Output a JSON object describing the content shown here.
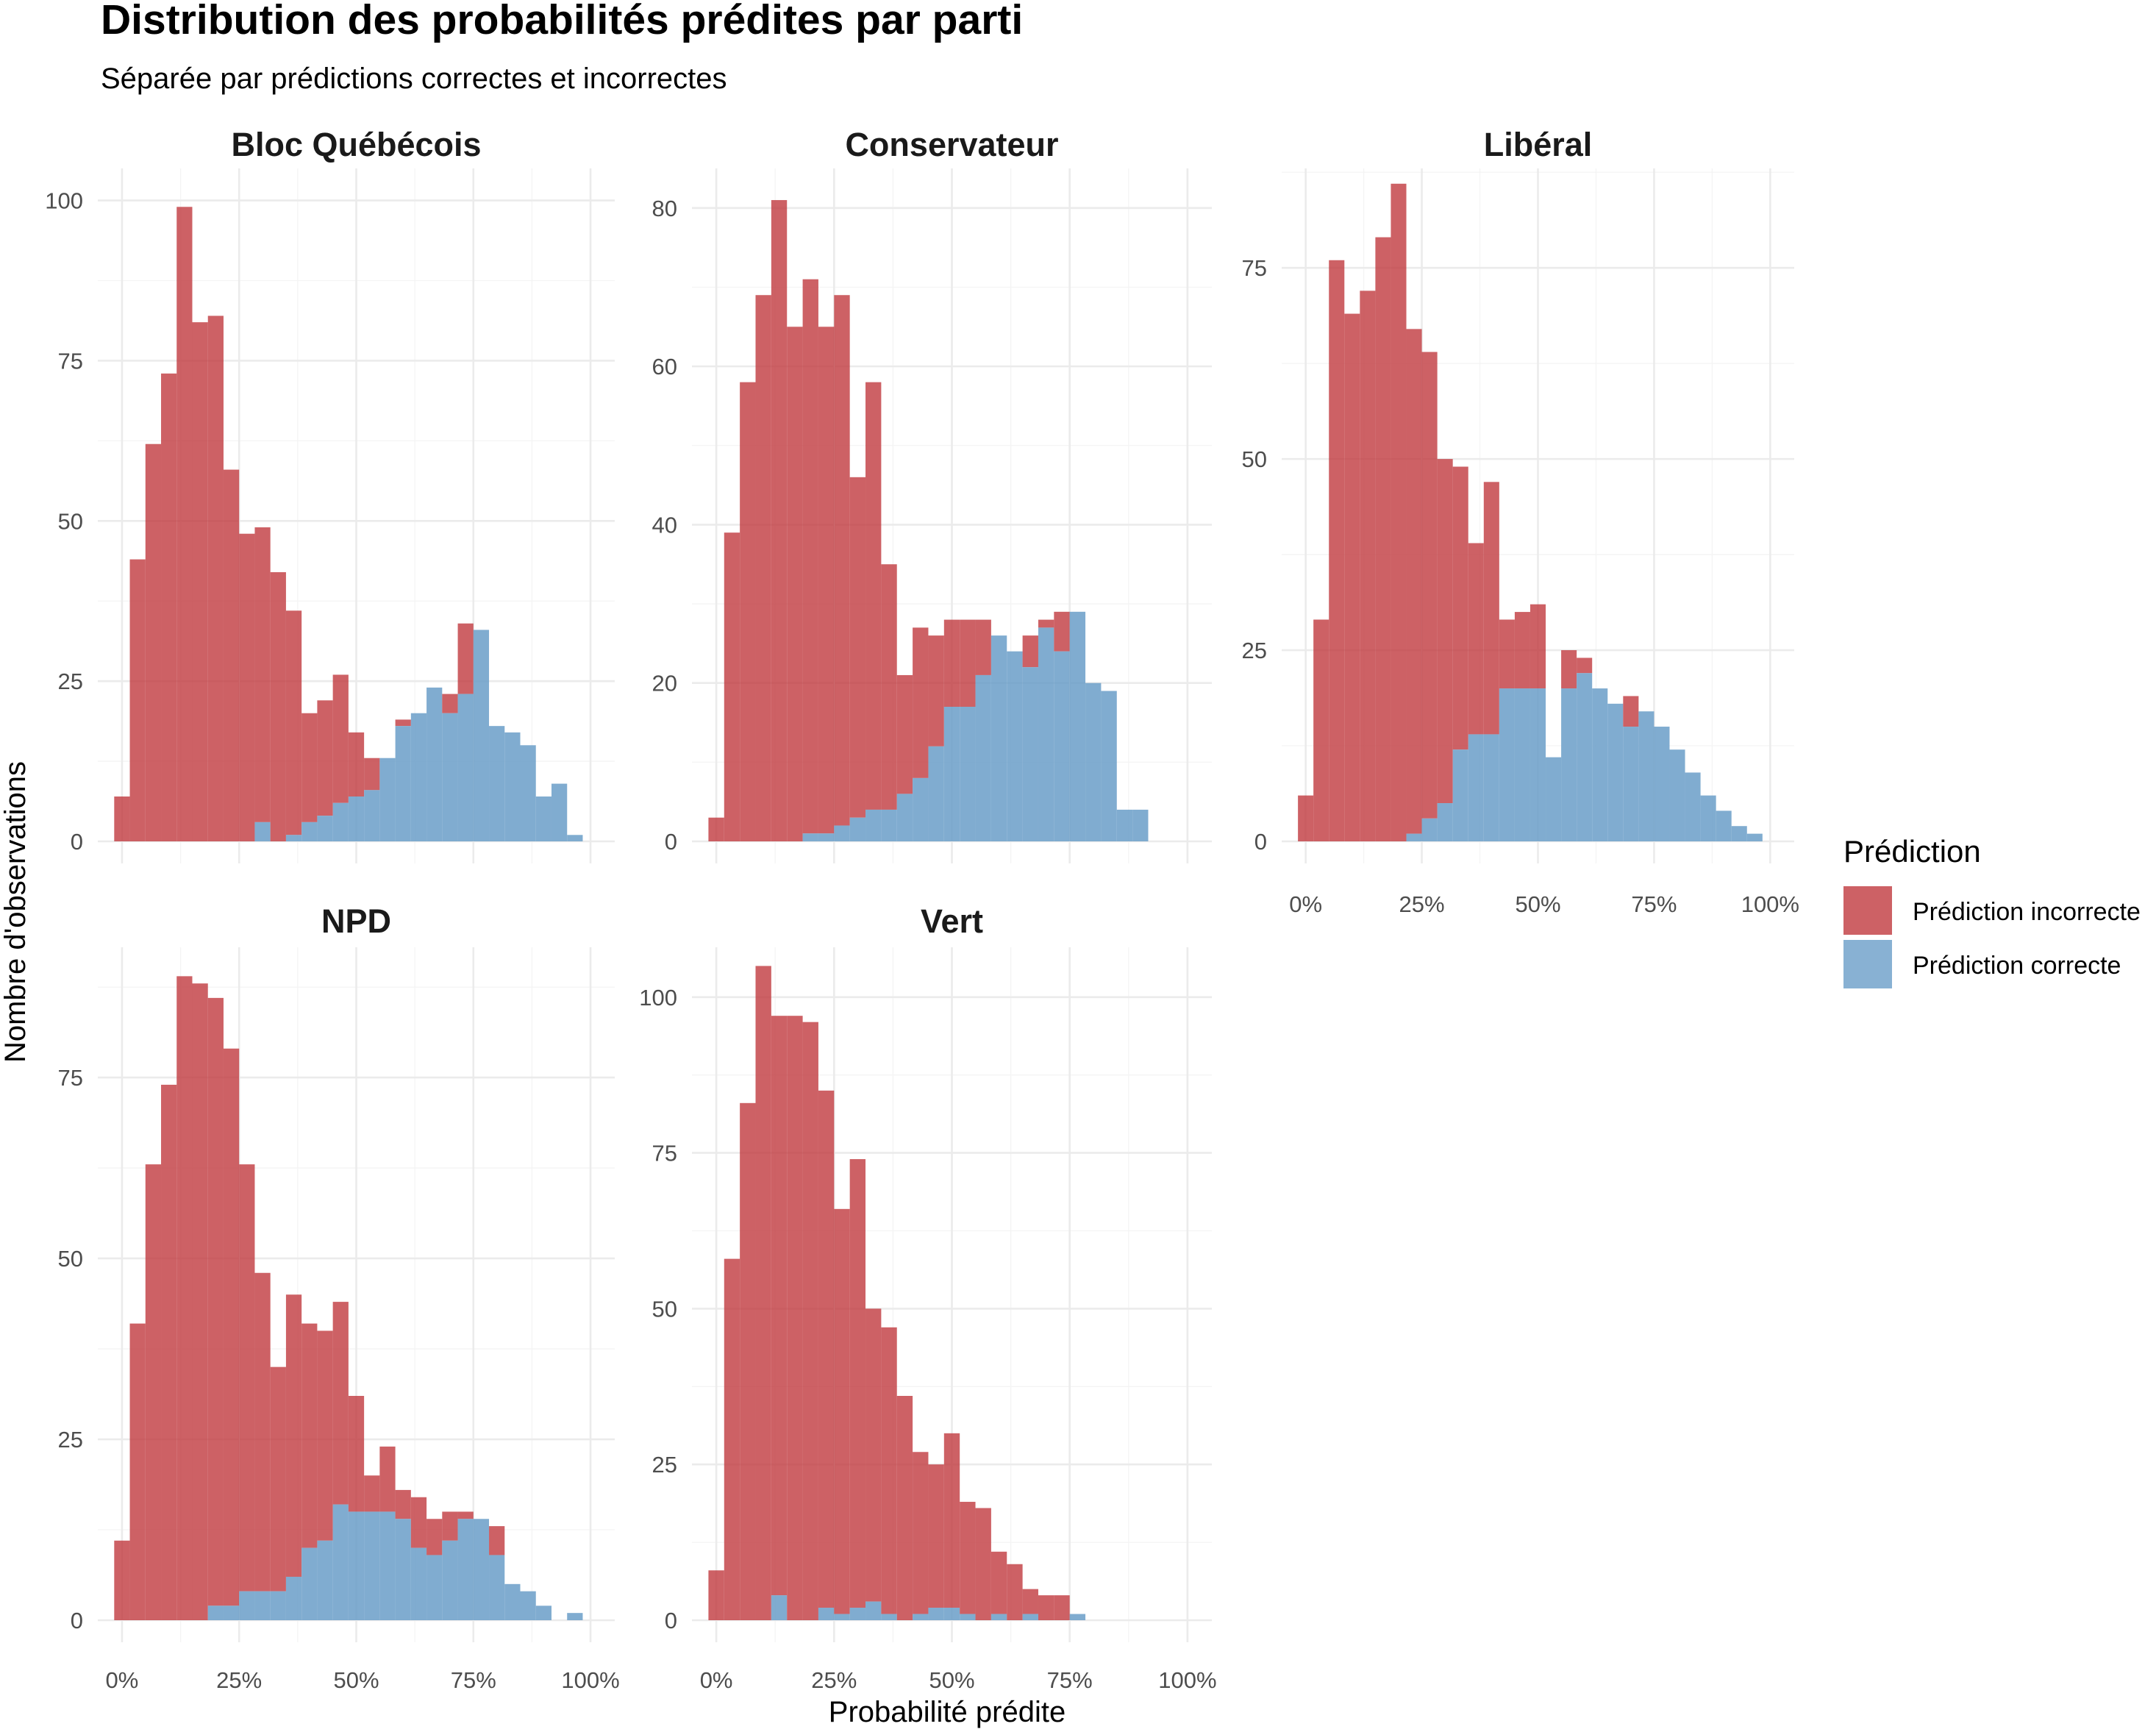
{
  "title": "Distribution des probabilités prédites par parti",
  "subtitle": "Séparée par prédictions correctes et incorrectes",
  "xlabel": "Probabilité prédite",
  "ylabel": "Nombre d'observations",
  "legend": {
    "title": "Prédiction",
    "items": [
      {
        "label": "Prédiction incorrecte",
        "color": "#c0393e"
      },
      {
        "label": "Prédiction correcte",
        "color": "#6a9dc8"
      }
    ]
  },
  "colors": {
    "incorrect": "#c0393e",
    "correct": "#6a9dc8",
    "grid": "#ebebeb"
  },
  "chart_data": {
    "type": "bar",
    "stacked": true,
    "bins": 30,
    "bin_width": 0.0333,
    "xlim": [
      0,
      1
    ],
    "x_ticks": [
      "0%",
      "25%",
      "50%",
      "75%",
      "100%"
    ],
    "grid": true,
    "legend_position": "right",
    "panels": [
      {
        "name": "Bloc Québécois",
        "ylim": [
          0,
          105
        ],
        "y_ticks": [
          0,
          25,
          50,
          75,
          100
        ],
        "x_ticks_shown": false,
        "incorrect_top": [
          7,
          44,
          62,
          73,
          99,
          81,
          82,
          58,
          48,
          49,
          42,
          36,
          20,
          22,
          26,
          17,
          13,
          13,
          19,
          20,
          19,
          23,
          34,
          18,
          17,
          15,
          9,
          2,
          0,
          0
        ],
        "correct": [
          0,
          0,
          0,
          0,
          0,
          0,
          0,
          0,
          0,
          3,
          0,
          1,
          3,
          4,
          6,
          7,
          8,
          13,
          18,
          20,
          24,
          20,
          23,
          33,
          18,
          17,
          15,
          7,
          9,
          1
        ]
      },
      {
        "name": "Conservateur",
        "ylim": [
          0,
          85
        ],
        "y_ticks": [
          0,
          20,
          40,
          60,
          80
        ],
        "x_ticks_shown": false,
        "incorrect_top": [
          3,
          39,
          58,
          69,
          81,
          65,
          71,
          65,
          69,
          46,
          58,
          35,
          21,
          27,
          26,
          28,
          28,
          28,
          26,
          22,
          26,
          28,
          29,
          20,
          19,
          4,
          4,
          0,
          0,
          0
        ],
        "correct": [
          0,
          0,
          0,
          0,
          0,
          0,
          1,
          1,
          2,
          3,
          4,
          4,
          6,
          8,
          12,
          17,
          17,
          21,
          26,
          24,
          22,
          27,
          24,
          29,
          20,
          19,
          4,
          4,
          0,
          0
        ]
      },
      {
        "name": "Libéral",
        "ylim": [
          0,
          88
        ],
        "y_ticks": [
          0,
          25,
          50,
          75
        ],
        "x_ticks_shown": true,
        "incorrect_top": [
          6,
          29,
          76,
          69,
          72,
          79,
          86,
          67,
          64,
          50,
          49,
          39,
          47,
          29,
          30,
          31,
          11,
          25,
          24,
          20,
          18,
          19,
          15,
          15,
          12,
          9,
          6,
          4,
          2,
          1
        ],
        "correct": [
          0,
          0,
          0,
          0,
          0,
          0,
          0,
          1,
          3,
          5,
          12,
          14,
          14,
          20,
          20,
          20,
          11,
          20,
          22,
          20,
          18,
          15,
          17,
          15,
          12,
          9,
          6,
          4,
          2,
          1
        ]
      },
      {
        "name": "NPD",
        "ylim": [
          0,
          93
        ],
        "y_ticks": [
          0,
          25,
          50,
          75
        ],
        "x_ticks_shown": true,
        "incorrect_top": [
          11,
          41,
          63,
          74,
          89,
          88,
          86,
          79,
          63,
          48,
          35,
          45,
          41,
          40,
          44,
          31,
          20,
          24,
          18,
          17,
          14,
          15,
          15,
          14,
          13,
          5,
          4,
          2,
          0,
          1
        ],
        "correct": [
          0,
          0,
          0,
          0,
          0,
          0,
          2,
          2,
          4,
          4,
          4,
          6,
          10,
          11,
          16,
          15,
          15,
          15,
          14,
          10,
          9,
          11,
          14,
          14,
          9,
          5,
          4,
          2,
          0,
          1
        ]
      },
      {
        "name": "Vert",
        "ylim": [
          0,
          108
        ],
        "y_ticks": [
          0,
          25,
          50,
          75,
          100
        ],
        "x_ticks_shown": true,
        "incorrect_top": [
          8,
          58,
          83,
          105,
          97,
          97,
          96,
          85,
          66,
          74,
          50,
          47,
          36,
          27,
          25,
          30,
          19,
          18,
          11,
          9,
          5,
          4,
          4,
          1,
          0,
          0,
          0,
          0,
          0,
          0
        ],
        "correct": [
          0,
          0,
          0,
          0,
          4,
          0,
          0,
          2,
          1,
          2,
          3,
          1,
          0,
          1,
          2,
          2,
          1,
          0,
          1,
          0,
          1,
          0,
          0,
          1,
          0,
          0,
          0,
          0,
          0,
          0
        ]
      }
    ]
  }
}
